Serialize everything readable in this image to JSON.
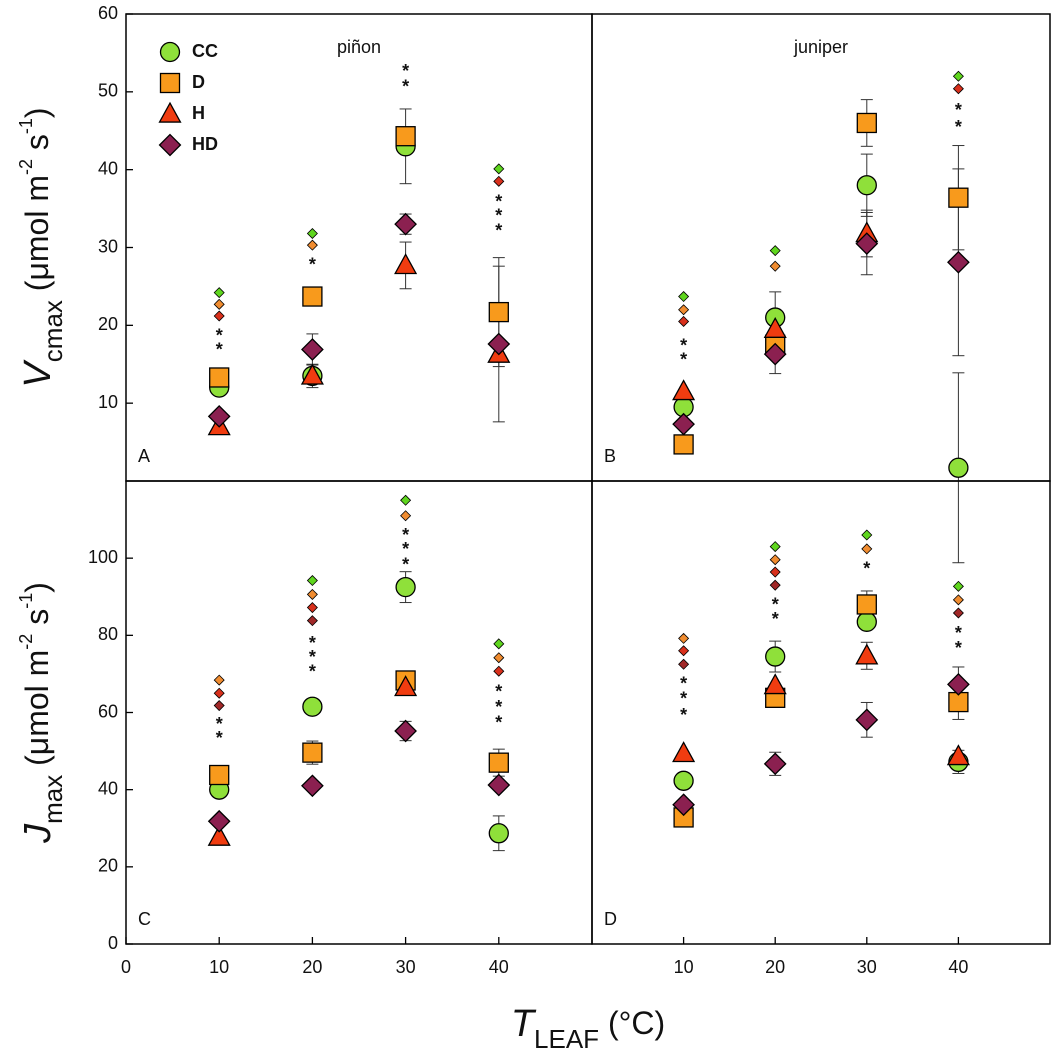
{
  "chart_data": [
    {
      "type": "scatter",
      "title": "piñon",
      "panel_label": "A",
      "ylabel": [
        "V",
        "cmax",
        " (μmol m",
        "-2",
        " s",
        "-1",
        ")"
      ],
      "legend": "upper left",
      "x": [
        10,
        20,
        30,
        40
      ],
      "xlim": [
        0,
        50
      ],
      "ylim": [
        0,
        60
      ],
      "yticks": [
        10,
        20,
        30,
        40,
        50,
        60
      ],
      "series": [
        {
          "name": "CC",
          "color": "#8fe03a",
          "marker": "circle",
          "values": [
            12,
            13.5,
            43,
            null
          ],
          "errors": [
            null,
            1.5,
            4.8,
            null
          ]
        },
        {
          "name": "D",
          "color": "#f89a1c",
          "marker": "square",
          "values": [
            13.3,
            23.7,
            44.3,
            21.7
          ],
          "errors": [
            null,
            null,
            null,
            7
          ]
        },
        {
          "name": "H",
          "color": "#f03c10",
          "marker": "triangle",
          "values": [
            7,
            13.5,
            27.7,
            16.3
          ],
          "errors": [
            null,
            null,
            3,
            null
          ]
        },
        {
          "name": "HD",
          "color": "#8b2050",
          "marker": "diamond",
          "values": [
            8.3,
            16.9,
            33,
            17.6
          ],
          "errors": [
            null,
            2,
            1.3,
            10
          ]
        }
      ],
      "annotations": [
        {
          "x": 10,
          "y": 24.2,
          "symbol": "diamond",
          "color": "#5fd61e"
        },
        {
          "x": 10,
          "y": 22.7,
          "symbol": "diamond",
          "color": "#f08c30"
        },
        {
          "x": 10,
          "y": 21.2,
          "symbol": "diamond",
          "color": "#d8301c"
        },
        {
          "x": 10,
          "y": 19.3,
          "text": "*",
          "color": "#f03c10"
        },
        {
          "x": 10,
          "y": 17.5,
          "text": "*",
          "color": "#8b2c5a"
        },
        {
          "x": 20,
          "y": 31.8,
          "symbol": "diamond",
          "color": "#5fd61e"
        },
        {
          "x": 20,
          "y": 30.3,
          "symbol": "diamond",
          "color": "#f08c30"
        },
        {
          "x": 20,
          "y": 28.4,
          "text": "*",
          "color": "#f89a1c"
        },
        {
          "x": 30,
          "y": 53.3,
          "text": "*",
          "color": "#f03c10"
        },
        {
          "x": 30,
          "y": 51.3,
          "text": "*",
          "color": "#8b2c5a"
        },
        {
          "x": 40,
          "y": 40.1,
          "symbol": "diamond",
          "color": "#5fd61e"
        },
        {
          "x": 40,
          "y": 38.5,
          "symbol": "diamond",
          "color": "#d8301c"
        },
        {
          "x": 40,
          "y": 36.5,
          "text": "*",
          "color": "#f89a1c"
        },
        {
          "x": 40,
          "y": 34.7,
          "text": "*",
          "color": "#f03c10"
        },
        {
          "x": 40,
          "y": 32.8,
          "text": "*",
          "color": "#8b2c5a"
        }
      ]
    },
    {
      "type": "scatter",
      "title": "juniper",
      "panel_label": "B",
      "x": [
        10,
        20,
        30,
        40
      ],
      "xlim": [
        0,
        50
      ],
      "ylim": [
        0,
        60
      ],
      "series": [
        {
          "name": "CC",
          "color": "#8fe03a",
          "marker": "circle",
          "values": [
            9.5,
            21,
            38,
            1.7
          ],
          "errors": [
            null,
            3.3,
            4,
            12.2
          ]
        },
        {
          "name": "D",
          "color": "#f89a1c",
          "marker": "square",
          "values": [
            4.7,
            17.5,
            46,
            36.4
          ],
          "errors": [
            null,
            null,
            3,
            6.7
          ]
        },
        {
          "name": "H",
          "color": "#f03c10",
          "marker": "triangle",
          "values": [
            11.5,
            19.5,
            31.8,
            null
          ],
          "errors": [
            null,
            null,
            3,
            null
          ]
        },
        {
          "name": "HD",
          "color": "#8b2050",
          "marker": "diamond",
          "values": [
            7.3,
            16.3,
            30.5,
            28.1
          ],
          "errors": [
            null,
            2.5,
            4,
            12
          ]
        }
      ],
      "annotations": [
        {
          "x": 10,
          "y": 23.7,
          "symbol": "diamond",
          "color": "#5fd61e"
        },
        {
          "x": 10,
          "y": 22,
          "symbol": "diamond",
          "color": "#f08c30"
        },
        {
          "x": 10,
          "y": 20.5,
          "symbol": "diamond",
          "color": "#d8301c"
        },
        {
          "x": 10,
          "y": 18,
          "text": "*",
          "color": "#8b2c5a"
        },
        {
          "x": 10,
          "y": 16.2,
          "text": "*",
          "color": "#f89a1c"
        },
        {
          "x": 20,
          "y": 29.6,
          "symbol": "diamond",
          "color": "#5fd61e"
        },
        {
          "x": 20,
          "y": 27.6,
          "symbol": "diamond",
          "color": "#f08c30"
        },
        {
          "x": 40,
          "y": 52,
          "symbol": "diamond",
          "color": "#5fd61e"
        },
        {
          "x": 40,
          "y": 50.4,
          "symbol": "diamond",
          "color": "#d8301c"
        },
        {
          "x": 40,
          "y": 48.3,
          "text": "*",
          "color": "#f03c10"
        },
        {
          "x": 40,
          "y": 46.1,
          "text": "*",
          "color": "#f89a1c"
        }
      ]
    },
    {
      "type": "scatter",
      "panel_label": "C",
      "ylabel": [
        "J",
        "max",
        " (μmol m",
        "-2",
        " s",
        "-1",
        ")"
      ],
      "xlabel": [
        "T",
        "LEAF",
        " (°C)"
      ],
      "x": [
        10,
        20,
        30,
        40
      ],
      "xlim": [
        0,
        50
      ],
      "ylim": [
        0,
        120
      ],
      "yticks": [
        0,
        20,
        40,
        60,
        80,
        100
      ],
      "xticks": [
        0,
        10,
        20,
        30,
        40
      ],
      "series": [
        {
          "name": "CC",
          "color": "#8fe03a",
          "marker": "circle",
          "values": [
            40,
            61.5,
            92.5,
            28.7
          ],
          "errors": [
            null,
            null,
            4,
            4.5
          ]
        },
        {
          "name": "D",
          "color": "#f89a1c",
          "marker": "square",
          "values": [
            43.8,
            49.6,
            68.3,
            47
          ],
          "errors": [
            null,
            3,
            null,
            3.5
          ]
        },
        {
          "name": "H",
          "color": "#f03c10",
          "marker": "triangle",
          "values": [
            27.7,
            null,
            66.5,
            null
          ],
          "errors": [
            null,
            null,
            null,
            null
          ]
        },
        {
          "name": "HD",
          "color": "#8b2050",
          "marker": "diamond",
          "values": [
            31.8,
            41,
            55.2,
            41.2
          ],
          "errors": [
            null,
            null,
            2.5,
            null
          ]
        }
      ],
      "annotations": [
        {
          "x": 10,
          "y": 68.4,
          "symbol": "diamond",
          "color": "#f08c30"
        },
        {
          "x": 10,
          "y": 65,
          "symbol": "diamond",
          "color": "#d8301c"
        },
        {
          "x": 10,
          "y": 61.8,
          "symbol": "diamond",
          "color": "#a02828"
        },
        {
          "x": 10,
          "y": 58.2,
          "text": "*",
          "color": "#f03c10"
        },
        {
          "x": 10,
          "y": 54.6,
          "text": "*",
          "color": "#8b2c5a"
        },
        {
          "x": 20,
          "y": 94.2,
          "symbol": "diamond",
          "color": "#5fd61e"
        },
        {
          "x": 20,
          "y": 90.6,
          "symbol": "diamond",
          "color": "#f08c30"
        },
        {
          "x": 20,
          "y": 87.2,
          "symbol": "diamond",
          "color": "#d8301c"
        },
        {
          "x": 20,
          "y": 83.8,
          "symbol": "diamond",
          "color": "#a02828"
        },
        {
          "x": 20,
          "y": 79.2,
          "text": "*",
          "color": "#f89a1c"
        },
        {
          "x": 20,
          "y": 75.6,
          "text": "*",
          "color": "#f03c10"
        },
        {
          "x": 20,
          "y": 71.8,
          "text": "*",
          "color": "#8b2c5a"
        },
        {
          "x": 30,
          "y": 115,
          "symbol": "diamond",
          "color": "#5fd61e"
        },
        {
          "x": 30,
          "y": 111,
          "symbol": "diamond",
          "color": "#f08c30"
        },
        {
          "x": 30,
          "y": 107.3,
          "text": "*",
          "color": "#f89a1c"
        },
        {
          "x": 30,
          "y": 103.6,
          "text": "*",
          "color": "#f03c10"
        },
        {
          "x": 30,
          "y": 99.6,
          "text": "*",
          "color": "#8b2c5a"
        },
        {
          "x": 40,
          "y": 77.8,
          "symbol": "diamond",
          "color": "#5fd61e"
        },
        {
          "x": 40,
          "y": 74.2,
          "symbol": "diamond",
          "color": "#f08c30"
        },
        {
          "x": 40,
          "y": 70.7,
          "symbol": "diamond",
          "color": "#d8301c"
        },
        {
          "x": 40,
          "y": 66.7,
          "text": "*",
          "color": "#f89a1c"
        },
        {
          "x": 40,
          "y": 62.6,
          "text": "*",
          "color": "#f03c10"
        },
        {
          "x": 40,
          "y": 58.7,
          "text": "*",
          "color": "#8b2c5a"
        }
      ]
    },
    {
      "type": "scatter",
      "panel_label": "D",
      "x": [
        10,
        20,
        30,
        40
      ],
      "xlim": [
        0,
        50
      ],
      "ylim": [
        0,
        120
      ],
      "xticks": [
        10,
        20,
        30,
        40
      ],
      "series": [
        {
          "name": "CC",
          "color": "#8fe03a",
          "marker": "circle",
          "values": [
            42.3,
            74.5,
            83.5,
            47.2
          ],
          "errors": [
            null,
            4,
            null,
            3
          ]
        },
        {
          "name": "D",
          "color": "#f89a1c",
          "marker": "square",
          "values": [
            32.8,
            63.8,
            88,
            62.7
          ],
          "errors": [
            null,
            null,
            3.5,
            4.5
          ]
        },
        {
          "name": "H",
          "color": "#f03c10",
          "marker": "triangle",
          "values": [
            49.4,
            67,
            74.7,
            48.6
          ],
          "errors": [
            null,
            null,
            3.5,
            null
          ]
        },
        {
          "name": "HD",
          "color": "#8b2050",
          "marker": "diamond",
          "values": [
            36.1,
            46.7,
            58.1,
            67.3
          ],
          "errors": [
            null,
            3,
            4.5,
            4.5
          ]
        }
      ],
      "annotations": [
        {
          "x": 10,
          "y": 79.2,
          "symbol": "diamond",
          "color": "#f08c30"
        },
        {
          "x": 10,
          "y": 76,
          "symbol": "diamond",
          "color": "#d8301c"
        },
        {
          "x": 10,
          "y": 72.5,
          "symbol": "diamond",
          "color": "#a02828"
        },
        {
          "x": 10,
          "y": 68.8,
          "text": "*",
          "color": "#f89a1c"
        },
        {
          "x": 10,
          "y": 64.8,
          "text": "*",
          "color": "#f03c10"
        },
        {
          "x": 10,
          "y": 60.6,
          "text": "*",
          "color": "#8b2c5a"
        },
        {
          "x": 20,
          "y": 103,
          "symbol": "diamond",
          "color": "#5fd61e"
        },
        {
          "x": 20,
          "y": 99.6,
          "symbol": "diamond",
          "color": "#f08c30"
        },
        {
          "x": 20,
          "y": 96.4,
          "symbol": "diamond",
          "color": "#d8301c"
        },
        {
          "x": 20,
          "y": 93,
          "symbol": "diamond",
          "color": "#a02828"
        },
        {
          "x": 20,
          "y": 89.2,
          "text": "*",
          "color": "#f89a1c"
        },
        {
          "x": 20,
          "y": 85.4,
          "text": "*",
          "color": "#8b2c5a"
        },
        {
          "x": 30,
          "y": 106,
          "symbol": "diamond",
          "color": "#5fd61e"
        },
        {
          "x": 30,
          "y": 102.4,
          "symbol": "diamond",
          "color": "#f08c30"
        },
        {
          "x": 30,
          "y": 98.5,
          "text": "*",
          "color": "#8b2c5a"
        },
        {
          "x": 40,
          "y": 92.7,
          "symbol": "diamond",
          "color": "#5fd61e"
        },
        {
          "x": 40,
          "y": 89.2,
          "symbol": "diamond",
          "color": "#f08c30"
        },
        {
          "x": 40,
          "y": 85.8,
          "symbol": "diamond",
          "color": "#a02828"
        },
        {
          "x": 40,
          "y": 81.8,
          "text": "*",
          "color": "#f89a1c"
        },
        {
          "x": 40,
          "y": 78,
          "text": "*",
          "color": "#8b2c5a"
        }
      ]
    }
  ]
}
